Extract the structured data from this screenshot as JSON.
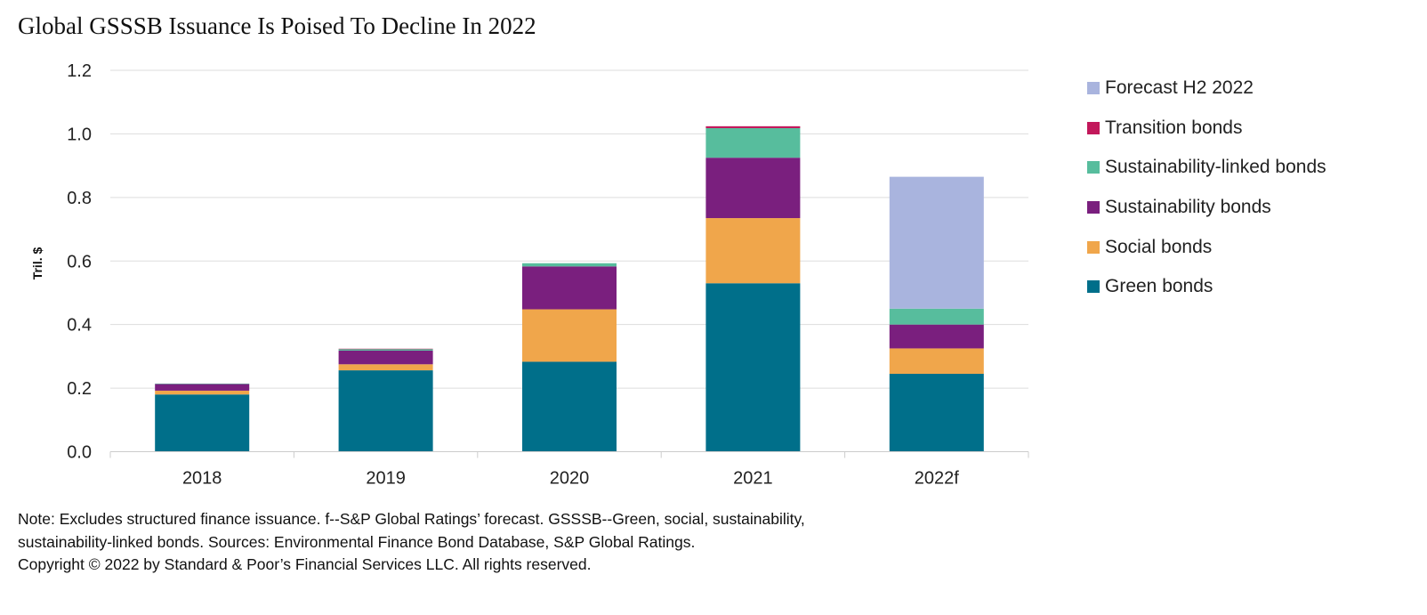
{
  "title": "Global GSSSB Issuance Is Poised To Decline In 2022",
  "notes": [
    "Note: Excludes structured finance issuance. f--S&P Global Ratings’ forecast. GSSSB--Green, social, sustainability,",
    "sustainability-linked bonds. Sources: Environmental Finance Bond Database, S&P Global Ratings.",
    "Copyright © 2022 by Standard & Poor’s Financial Services LLC. All rights reserved."
  ],
  "chart_data": {
    "type": "bar",
    "stacked": true,
    "categories": [
      "2018",
      "2019",
      "2020",
      "2021",
      "2022f"
    ],
    "ylabel": "Tril. $",
    "xlabel": "",
    "ylim": [
      0,
      1.2
    ],
    "yticks": [
      "0.0",
      "0.2",
      "0.4",
      "0.6",
      "0.8",
      "1.0",
      "1.2"
    ],
    "grid": true,
    "legend_position": "right",
    "series": [
      {
        "name": "Green bonds",
        "color": "#006f8a",
        "values": [
          0.18,
          0.256,
          0.283,
          0.53,
          0.245
        ]
      },
      {
        "name": "Social bonds",
        "color": "#f0a64b",
        "values": [
          0.012,
          0.019,
          0.165,
          0.205,
          0.08
        ]
      },
      {
        "name": "Sustainability bonds",
        "color": "#7a1f7e",
        "values": [
          0.021,
          0.043,
          0.135,
          0.19,
          0.075
        ]
      },
      {
        "name": "Sustainability-linked bonds",
        "color": "#57bd9d",
        "values": [
          0.001,
          0.005,
          0.01,
          0.093,
          0.05
        ]
      },
      {
        "name": "Transition bonds",
        "color": "#c2185b",
        "values": [
          0.0,
          0.001,
          0.0,
          0.006,
          0.0
        ]
      },
      {
        "name": "Forecast H2 2022",
        "color": "#a9b4de",
        "values": [
          0,
          0,
          0,
          0,
          0.415
        ]
      }
    ]
  }
}
